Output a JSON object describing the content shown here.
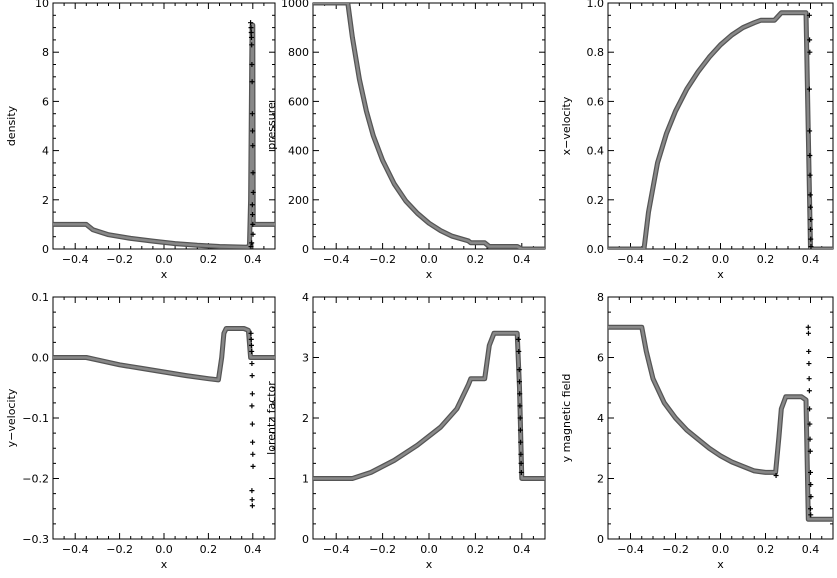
{
  "chart_data": [
    {
      "type": "scatter",
      "xlabel": "x",
      "ylabel": "density",
      "xlim": [
        -0.5,
        0.5
      ],
      "ylim": [
        0,
        10
      ],
      "xticks": [
        -0.4,
        -0.2,
        0.0,
        0.2,
        0.4
      ],
      "yticks": [
        0,
        2,
        4,
        6,
        8,
        10
      ],
      "xtick_labels": [
        "−0.4",
        "−0.2",
        "0.0",
        "0.2",
        "0.4"
      ],
      "ytick_labels": [
        "0",
        "2",
        "4",
        "6",
        "8",
        "10"
      ],
      "curve": [
        [
          -0.5,
          1.0
        ],
        [
          -0.35,
          1.0
        ],
        [
          -0.32,
          0.78
        ],
        [
          -0.25,
          0.58
        ],
        [
          -0.15,
          0.43
        ],
        [
          -0.05,
          0.32
        ],
        [
          0.05,
          0.22
        ],
        [
          0.15,
          0.15
        ],
        [
          0.25,
          0.1
        ],
        [
          0.38,
          0.07
        ],
        [
          0.385,
          0.2
        ],
        [
          0.39,
          2.0
        ],
        [
          0.393,
          5.0
        ],
        [
          0.395,
          7.5
        ],
        [
          0.397,
          9.1
        ],
        [
          0.4,
          9.1
        ],
        [
          0.402,
          1.0
        ],
        [
          0.5,
          1.0
        ]
      ],
      "markers": [
        [
          0.39,
          9.2
        ],
        [
          0.392,
          9.0
        ],
        [
          0.393,
          8.8
        ],
        [
          0.394,
          8.6
        ],
        [
          0.395,
          8.3
        ],
        [
          0.396,
          7.5
        ],
        [
          0.397,
          6.8
        ],
        [
          0.398,
          5.5
        ],
        [
          0.399,
          4.8
        ],
        [
          0.4,
          4.2
        ],
        [
          0.401,
          3.1
        ],
        [
          0.402,
          2.3
        ],
        [
          0.398,
          1.8
        ],
        [
          0.399,
          1.4
        ],
        [
          0.4,
          1.0
        ],
        [
          0.401,
          0.6
        ],
        [
          0.395,
          0.25
        ],
        [
          0.392,
          0.1
        ]
      ]
    },
    {
      "type": "scatter",
      "xlabel": "x",
      "ylabel": "pressure",
      "xlim": [
        -0.5,
        0.5
      ],
      "ylim": [
        0,
        1000
      ],
      "xticks": [
        -0.4,
        -0.2,
        0.0,
        0.2,
        0.4
      ],
      "yticks": [
        0,
        200,
        400,
        600,
        800,
        1000
      ],
      "xtick_labels": [
        "−0.4",
        "−0.2",
        "0.0",
        "0.2",
        "0.4"
      ],
      "ytick_labels": [
        "0",
        "200",
        "400",
        "600",
        "800",
        "1000"
      ],
      "curve": [
        [
          -0.5,
          1000
        ],
        [
          -0.35,
          1000
        ],
        [
          -0.33,
          860
        ],
        [
          -0.3,
          690
        ],
        [
          -0.27,
          560
        ],
        [
          -0.24,
          460
        ],
        [
          -0.2,
          360
        ],
        [
          -0.15,
          265
        ],
        [
          -0.1,
          195
        ],
        [
          -0.05,
          145
        ],
        [
          0.0,
          105
        ],
        [
          0.05,
          75
        ],
        [
          0.1,
          52
        ],
        [
          0.17,
          33
        ],
        [
          0.18,
          25
        ],
        [
          0.24,
          25
        ],
        [
          0.26,
          10
        ],
        [
          0.38,
          10
        ],
        [
          0.4,
          0
        ],
        [
          0.5,
          0
        ]
      ],
      "markers": []
    },
    {
      "type": "scatter",
      "xlabel": "x",
      "ylabel": "x−velocity",
      "xlim": [
        -0.5,
        0.5
      ],
      "ylim": [
        0,
        1
      ],
      "xticks": [
        -0.4,
        -0.2,
        0.0,
        0.2,
        0.4
      ],
      "yticks": [
        0.0,
        0.2,
        0.4,
        0.6,
        0.8,
        1.0
      ],
      "xtick_labels": [
        "−0.4",
        "−0.2",
        "0.0",
        "0.2",
        "0.4"
      ],
      "ytick_labels": [
        "0.0",
        "0.2",
        "0.4",
        "0.6",
        "0.8",
        "1.0"
      ],
      "curve": [
        [
          -0.5,
          0.0
        ],
        [
          -0.34,
          0.0
        ],
        [
          -0.32,
          0.15
        ],
        [
          -0.28,
          0.35
        ],
        [
          -0.24,
          0.47
        ],
        [
          -0.2,
          0.56
        ],
        [
          -0.15,
          0.65
        ],
        [
          -0.1,
          0.72
        ],
        [
          -0.05,
          0.78
        ],
        [
          0.0,
          0.83
        ],
        [
          0.05,
          0.87
        ],
        [
          0.1,
          0.9
        ],
        [
          0.15,
          0.92
        ],
        [
          0.18,
          0.93
        ],
        [
          0.24,
          0.93
        ],
        [
          0.27,
          0.96
        ],
        [
          0.38,
          0.96
        ],
        [
          0.4,
          0.0
        ],
        [
          0.5,
          0.0
        ]
      ],
      "markers": [
        [
          0.395,
          0.95
        ],
        [
          0.396,
          0.85
        ],
        [
          0.397,
          0.8
        ],
        [
          0.395,
          0.65
        ],
        [
          0.396,
          0.48
        ],
        [
          0.397,
          0.38
        ],
        [
          0.398,
          0.3
        ],
        [
          0.399,
          0.22
        ],
        [
          0.4,
          0.17
        ],
        [
          0.401,
          0.12
        ],
        [
          0.4,
          0.08
        ],
        [
          0.401,
          0.04
        ],
        [
          0.402,
          0.01
        ]
      ]
    },
    {
      "type": "scatter",
      "xlabel": "x",
      "ylabel": "y−velocity",
      "xlim": [
        -0.5,
        0.5
      ],
      "ylim": [
        -0.3,
        0.1
      ],
      "xticks": [
        -0.4,
        -0.2,
        0.0,
        0.2,
        0.4
      ],
      "yticks": [
        -0.3,
        -0.2,
        -0.1,
        0.0,
        0.1
      ],
      "xtick_labels": [
        "−0.4",
        "−0.2",
        "0.0",
        "0.2",
        "0.4"
      ],
      "ytick_labels": [
        "−0.3",
        "−0.2",
        "−0.1",
        "0.0",
        "0.1"
      ],
      "curve": [
        [
          -0.5,
          0.0
        ],
        [
          -0.35,
          0.0
        ],
        [
          -0.3,
          -0.004
        ],
        [
          -0.2,
          -0.012
        ],
        [
          -0.1,
          -0.018
        ],
        [
          0.0,
          -0.024
        ],
        [
          0.1,
          -0.03
        ],
        [
          0.2,
          -0.035
        ],
        [
          0.245,
          -0.037
        ],
        [
          0.26,
          0.0
        ],
        [
          0.27,
          0.04
        ],
        [
          0.28,
          0.048
        ],
        [
          0.36,
          0.048
        ],
        [
          0.38,
          0.045
        ],
        [
          0.39,
          0.0
        ],
        [
          0.4,
          0.0
        ],
        [
          0.5,
          0.0
        ]
      ],
      "markers": [
        [
          0.392,
          0.04
        ],
        [
          0.393,
          0.03
        ],
        [
          0.394,
          0.02
        ],
        [
          0.395,
          0.01
        ],
        [
          0.396,
          -0.01
        ],
        [
          0.397,
          -0.03
        ],
        [
          0.398,
          -0.06
        ],
        [
          0.396,
          -0.08
        ],
        [
          0.398,
          -0.11
        ],
        [
          0.399,
          -0.14
        ],
        [
          0.4,
          -0.16
        ],
        [
          0.401,
          -0.18
        ],
        [
          0.396,
          -0.22
        ],
        [
          0.397,
          -0.235
        ],
        [
          0.398,
          -0.245
        ]
      ]
    },
    {
      "type": "scatter",
      "xlabel": "x",
      "ylabel": "lorentz factor",
      "xlim": [
        -0.5,
        0.5
      ],
      "ylim": [
        0,
        4
      ],
      "xticks": [
        -0.4,
        -0.2,
        0.0,
        0.2,
        0.4
      ],
      "yticks": [
        0,
        1,
        2,
        3,
        4
      ],
      "xtick_labels": [
        "−0.4",
        "−0.2",
        "0.0",
        "0.2",
        "0.4"
      ],
      "ytick_labels": [
        "0",
        "1",
        "2",
        "3",
        "4"
      ],
      "curve": [
        [
          -0.5,
          1.0
        ],
        [
          -0.33,
          1.0
        ],
        [
          -0.25,
          1.1
        ],
        [
          -0.15,
          1.3
        ],
        [
          -0.05,
          1.55
        ],
        [
          0.05,
          1.85
        ],
        [
          0.12,
          2.15
        ],
        [
          0.17,
          2.55
        ],
        [
          0.18,
          2.65
        ],
        [
          0.24,
          2.65
        ],
        [
          0.26,
          3.2
        ],
        [
          0.28,
          3.4
        ],
        [
          0.38,
          3.4
        ],
        [
          0.39,
          2.5
        ],
        [
          0.4,
          1.0
        ],
        [
          0.5,
          1.0
        ]
      ],
      "markers": [
        [
          0.385,
          3.3
        ],
        [
          0.387,
          3.1
        ],
        [
          0.389,
          2.8
        ],
        [
          0.39,
          2.6
        ],
        [
          0.391,
          2.4
        ],
        [
          0.392,
          2.2
        ],
        [
          0.393,
          2.0
        ],
        [
          0.394,
          1.8
        ],
        [
          0.395,
          1.6
        ],
        [
          0.396,
          1.4
        ],
        [
          0.397,
          1.25
        ],
        [
          0.398,
          1.1
        ]
      ]
    },
    {
      "type": "scatter",
      "xlabel": "x",
      "ylabel": "y magnetic field",
      "xlim": [
        -0.5,
        0.5
      ],
      "ylim": [
        0,
        8
      ],
      "xticks": [
        -0.4,
        -0.2,
        0.0,
        0.2,
        0.4
      ],
      "yticks": [
        0,
        2,
        4,
        6,
        8
      ],
      "xtick_labels": [
        "−0.4",
        "−0.2",
        "0.0",
        "0.2",
        "0.4"
      ],
      "ytick_labels": [
        "0",
        "2",
        "4",
        "6",
        "8"
      ],
      "curve": [
        [
          -0.5,
          7.0
        ],
        [
          -0.35,
          7.0
        ],
        [
          -0.33,
          6.2
        ],
        [
          -0.3,
          5.3
        ],
        [
          -0.25,
          4.5
        ],
        [
          -0.2,
          4.0
        ],
        [
          -0.15,
          3.6
        ],
        [
          -0.1,
          3.3
        ],
        [
          -0.05,
          3.0
        ],
        [
          0.0,
          2.75
        ],
        [
          0.05,
          2.55
        ],
        [
          0.1,
          2.4
        ],
        [
          0.15,
          2.25
        ],
        [
          0.2,
          2.2
        ],
        [
          0.245,
          2.2
        ],
        [
          0.26,
          3.4
        ],
        [
          0.27,
          4.3
        ],
        [
          0.29,
          4.7
        ],
        [
          0.36,
          4.7
        ],
        [
          0.38,
          4.6
        ],
        [
          0.39,
          0.65
        ],
        [
          0.5,
          0.65
        ]
      ],
      "markers": [
        [
          0.39,
          7.0
        ],
        [
          0.391,
          6.8
        ],
        [
          0.392,
          6.2
        ],
        [
          0.393,
          5.8
        ],
        [
          0.394,
          5.3
        ],
        [
          0.395,
          4.9
        ],
        [
          0.396,
          4.3
        ],
        [
          0.397,
          3.8
        ],
        [
          0.398,
          3.3
        ],
        [
          0.399,
          2.9
        ],
        [
          0.4,
          2.2
        ],
        [
          0.401,
          1.8
        ],
        [
          0.402,
          1.4
        ],
        [
          0.4,
          1.0
        ],
        [
          0.401,
          0.8
        ],
        [
          0.247,
          2.1
        ]
      ]
    }
  ]
}
